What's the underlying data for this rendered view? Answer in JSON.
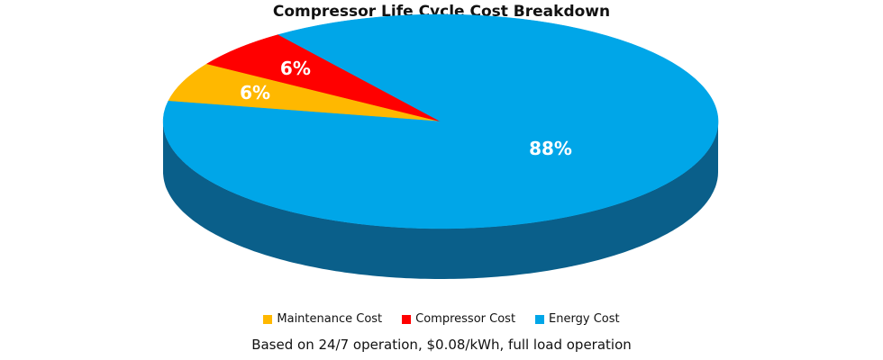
{
  "chart_data": {
    "type": "pie",
    "title": "Compressor Life Cycle Cost Breakdown",
    "slices": [
      {
        "name": "Maintenance Cost",
        "value": 6,
        "label": "6%",
        "color": "#FFB800",
        "side_color": "#C48A00"
      },
      {
        "name": "Compressor Cost",
        "value": 6,
        "label": "6%",
        "color": "#FF0000",
        "side_color": "#B00000"
      },
      {
        "name": "Energy Cost",
        "value": 88,
        "label": "88%",
        "color": "#00A6E8",
        "side_color": "#0A5F8A"
      }
    ],
    "legend_position": "bottom",
    "style": "3d"
  },
  "footnote": "Based on 24/7 operation, $0.08/kWh, full load operation"
}
